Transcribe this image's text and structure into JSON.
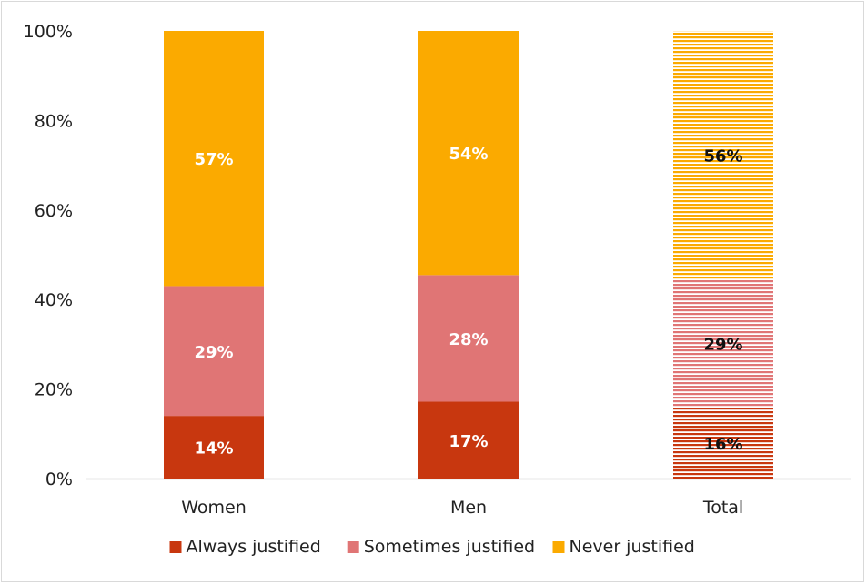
{
  "colors": {
    "always": "#c8370f",
    "sometimes": "#e07575",
    "never": "#fbaa00",
    "axis": "#d0d0d0",
    "label_light": "#ffffff",
    "label_dark": "#111111"
  },
  "chart_data": {
    "type": "bar",
    "stacked": true,
    "title": "",
    "xlabel": "",
    "ylabel": "",
    "ylim": [
      0,
      100
    ],
    "y_ticks": [
      "0%",
      "20%",
      "40%",
      "60%",
      "80%",
      "100%"
    ],
    "y_tick_values": [
      0,
      20,
      40,
      60,
      80,
      100
    ],
    "grid": false,
    "legend_position": "bottom",
    "categories": [
      "Women",
      "Men",
      "Total"
    ],
    "series": [
      {
        "name": "Always justified",
        "values": [
          14,
          17,
          16
        ],
        "labels": [
          "14%",
          "17%",
          "16%"
        ],
        "color_key": "always"
      },
      {
        "name": "Sometimes justified",
        "values": [
          29,
          28,
          29
        ],
        "labels": [
          "29%",
          "28%",
          "29%"
        ],
        "color_key": "sometimes"
      },
      {
        "name": "Never justified",
        "values": [
          57,
          54,
          56
        ],
        "labels": [
          "57%",
          "54%",
          "56%"
        ],
        "color_key": "never"
      }
    ],
    "hatched_categories": [
      "Total"
    ]
  }
}
